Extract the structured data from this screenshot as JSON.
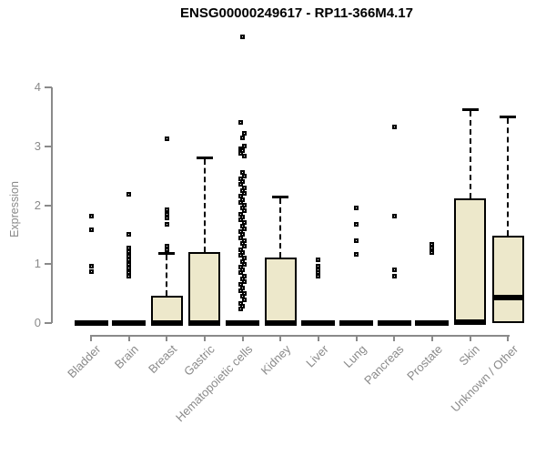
{
  "title": "ENSG00000249617 - RP11-366M4.17",
  "colors": {
    "box_fill": "#ede8cb",
    "box_border": "#000000",
    "median": "#000000",
    "whisker": "#000000",
    "outlier": "#000000",
    "axis_line": "#8a8a8a",
    "axis_text": "#8a8a8a",
    "title_text": "#000000",
    "background": "#ffffff"
  },
  "chart_data": {
    "type": "boxplot",
    "title": "ENSG00000249617 - RP11-366M4.17",
    "xlabel": "",
    "ylabel": "Expression",
    "ylim": [
      0,
      4
    ],
    "yticks": [
      0,
      1,
      2,
      3,
      4
    ],
    "grid": false,
    "legend": "none",
    "categories": [
      "Bladder",
      "Brain",
      "Breast",
      "Gastric",
      "Hematopoietic cells",
      "Kidney",
      "Liver",
      "Lung",
      "Pancreas",
      "Prostate",
      "Skin",
      "Unknown / Other"
    ],
    "boxes": [
      {
        "label": "Bladder",
        "whisker_low": 0,
        "q1": 0,
        "median": 0,
        "q3": 0,
        "whisker_high": 0,
        "outliers": [
          1.81,
          1.58,
          0.96,
          0.88
        ]
      },
      {
        "label": "Brain",
        "whisker_low": 0,
        "q1": 0,
        "median": 0,
        "q3": 0,
        "whisker_high": 0,
        "outliers": [
          2.18,
          1.51,
          1.28,
          1.21,
          1.14,
          1.07,
          1.0,
          0.93,
          0.86,
          0.79
        ]
      },
      {
        "label": "Breast",
        "whisker_low": 0,
        "q1": 0,
        "median": 0,
        "q3": 0.46,
        "whisker_high": 1.2,
        "outliers": [
          3.12,
          1.93,
          1.85,
          1.78,
          1.67,
          1.31,
          1.24
        ]
      },
      {
        "label": "Gastric",
        "whisker_low": 0,
        "q1": 0,
        "median": 0,
        "q3": 1.21,
        "whisker_high": 2.83,
        "outliers": []
      },
      {
        "label": "Hematopoietic cells",
        "whisker_low": 0,
        "q1": 0,
        "median": 0,
        "q3": 0,
        "whisker_high": 0,
        "outliers": [
          4.85,
          3.41,
          3.22,
          3.15,
          3.0,
          2.96,
          2.92,
          2.88,
          2.84,
          2.55,
          2.5,
          2.45,
          2.4,
          2.35,
          2.3,
          2.25,
          2.2,
          2.15,
          2.1,
          2.05,
          2.0,
          1.95,
          1.9,
          1.85,
          1.8,
          1.75,
          1.7,
          1.65,
          1.6,
          1.55,
          1.5,
          1.45,
          1.4,
          1.35,
          1.3,
          1.25,
          1.2,
          1.15,
          1.1,
          1.05,
          1.0,
          0.95,
          0.9,
          0.85,
          0.8,
          0.75,
          0.7,
          0.65,
          0.6,
          0.55,
          0.5,
          0.45,
          0.4,
          0.33,
          0.29,
          0.24
        ]
      },
      {
        "label": "Kidney",
        "whisker_low": 0,
        "q1": 0,
        "median": 0,
        "q3": 1.11,
        "whisker_high": 2.16,
        "outliers": []
      },
      {
        "label": "Liver",
        "whisker_low": 0,
        "q1": 0,
        "median": 0,
        "q3": 0,
        "whisker_high": 0,
        "outliers": [
          1.07,
          0.96,
          0.9,
          0.85,
          0.8
        ]
      },
      {
        "label": "Lung",
        "whisker_low": 0,
        "q1": 0,
        "median": 0,
        "q3": 0,
        "whisker_high": 0,
        "outliers": [
          1.96,
          1.67,
          1.39,
          1.17
        ]
      },
      {
        "label": "Pancreas",
        "whisker_low": 0,
        "q1": 0,
        "median": 0,
        "q3": 0,
        "whisker_high": 0,
        "outliers": [
          3.33,
          1.81,
          0.9,
          0.8
        ]
      },
      {
        "label": "Prostate",
        "whisker_low": 0,
        "q1": 0,
        "median": 0,
        "q3": 0,
        "whisker_high": 0,
        "outliers": [
          1.34,
          1.27,
          1.2
        ]
      },
      {
        "label": "Skin",
        "whisker_low": 0,
        "q1": 0,
        "median": 0.02,
        "q3": 2.12,
        "whisker_high": 3.65,
        "outliers": []
      },
      {
        "label": "Unknown / Other",
        "whisker_low": 0,
        "q1": 0,
        "median": 0.43,
        "q3": 1.48,
        "whisker_high": 3.52,
        "outliers": []
      }
    ]
  }
}
